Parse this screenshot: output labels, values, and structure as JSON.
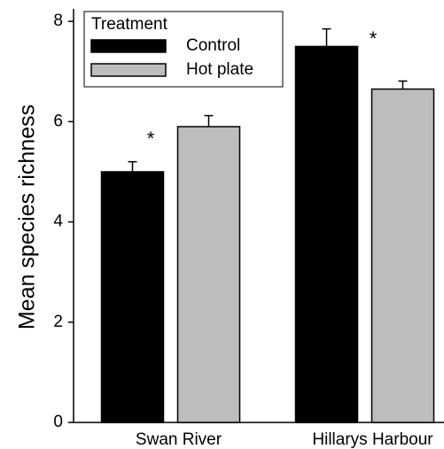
{
  "chart_data": {
    "type": "bar",
    "y_label": "Mean species richness",
    "legend_title": "Treatment",
    "categories": [
      "Swan River",
      "Hillarys Harbour"
    ],
    "series": [
      {
        "name": "Control",
        "color": "#000000",
        "values": [
          5.0,
          7.5
        ],
        "errors": [
          0.2,
          0.35
        ]
      },
      {
        "name": "Hot plate",
        "color": "#bdbdbd",
        "values": [
          5.9,
          6.65
        ],
        "errors": [
          0.22,
          0.16
        ]
      }
    ],
    "annotations": [
      "*",
      "*"
    ],
    "ylim": [
      0,
      8.25
    ],
    "yticks": [
      0,
      2,
      4,
      6,
      8
    ],
    "legend": "upper left"
  }
}
